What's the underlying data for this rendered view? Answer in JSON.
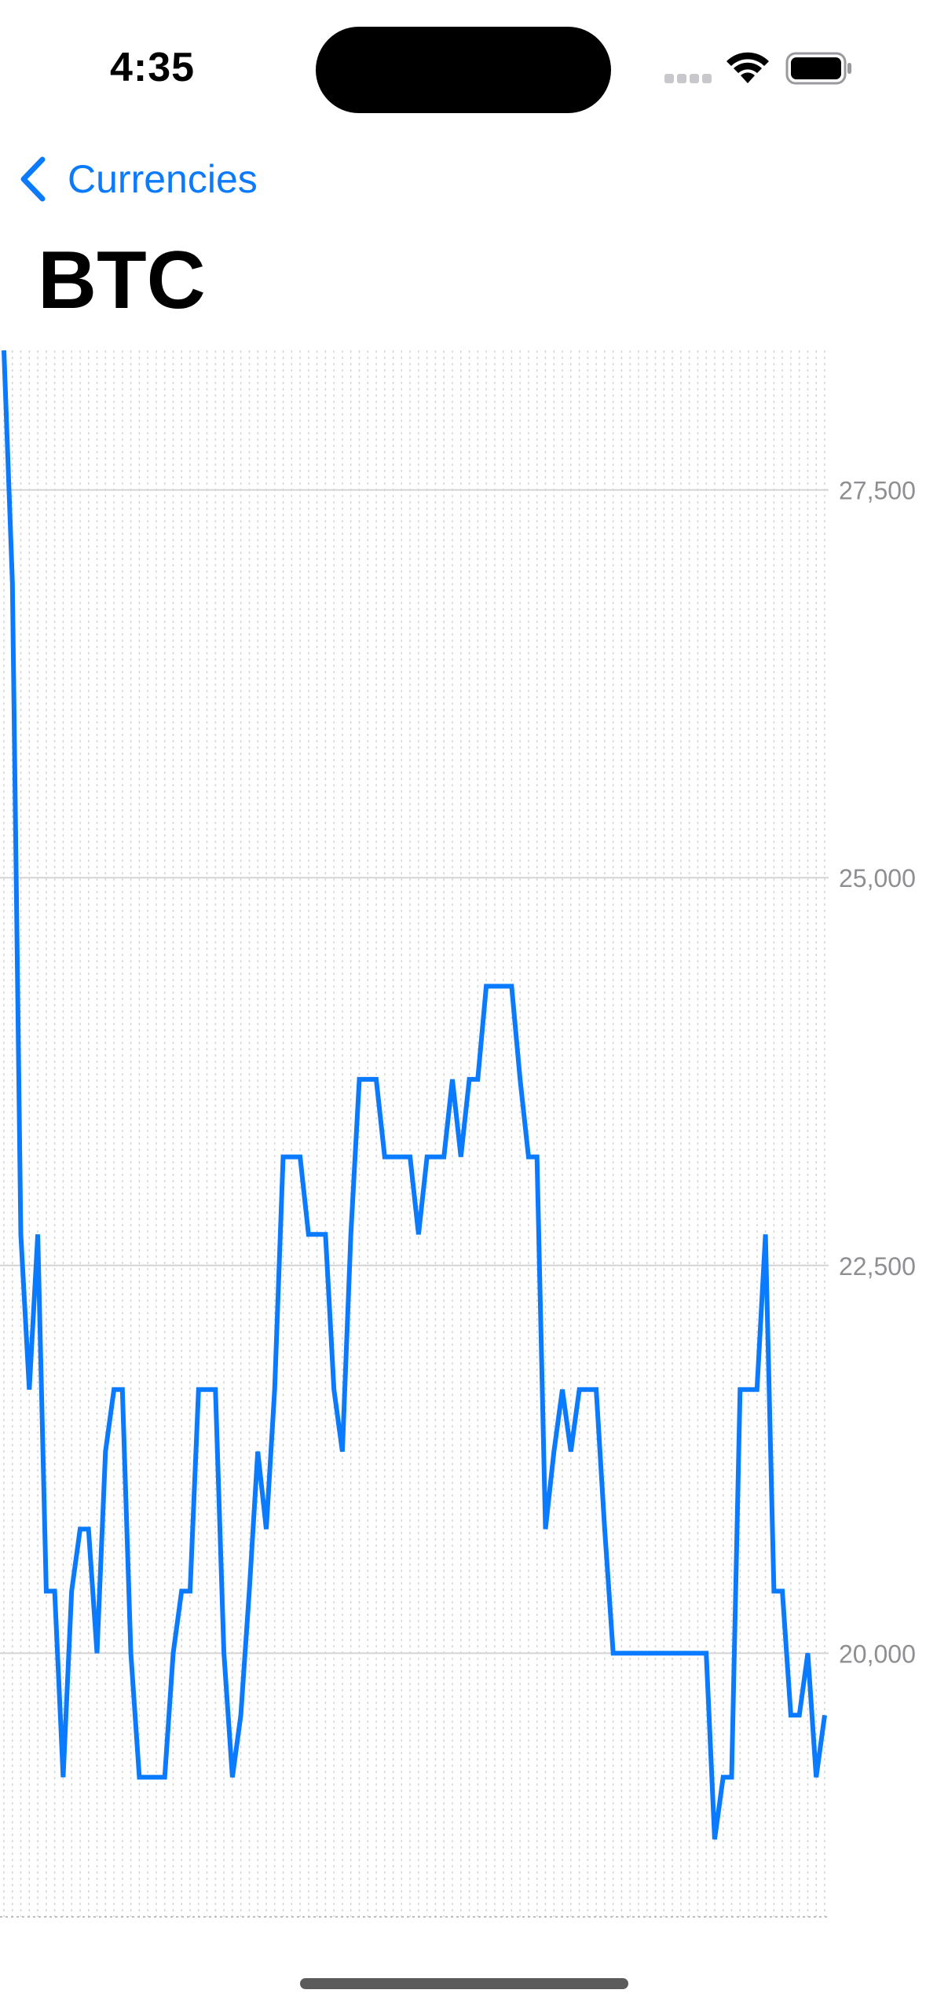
{
  "status_bar": {
    "time": "4:35"
  },
  "nav": {
    "back_label": "Currencies"
  },
  "page": {
    "title": "BTC"
  },
  "colors": {
    "accent": "#0a7aff",
    "line": "#0a7aff",
    "grid": "#d4d4d4",
    "axis_text": "#8e8e93"
  },
  "icons": [
    "chevron-left-icon",
    "signal-icon",
    "wifi-icon",
    "battery-icon"
  ],
  "chart_data": {
    "type": "line",
    "title": "",
    "xlabel": "",
    "ylabel": "",
    "grid": true,
    "y_axis_position": "right",
    "ylim": [
      18300,
      28400
    ],
    "y_ticks": [
      20000,
      22500,
      25000,
      27500
    ],
    "y_tick_labels": [
      "20,000",
      "22,500",
      "25,000",
      "27,500"
    ],
    "series": [
      {
        "values": [
          28400,
          26900,
          22700,
          21700,
          22700,
          20400,
          20400,
          19200,
          20400,
          20800,
          20800,
          20000,
          21300,
          21700,
          21700,
          20000,
          19200,
          19200,
          19200,
          19200,
          20000,
          20400,
          20400,
          21700,
          21700,
          21700,
          20000,
          19200,
          19600,
          20400,
          21300,
          20800,
          21700,
          23200,
          23200,
          23200,
          22700,
          22700,
          22700,
          21700,
          21300,
          22700,
          23700,
          23700,
          23700,
          23200,
          23200,
          23200,
          23200,
          22700,
          23200,
          23200,
          23200,
          23700,
          23200,
          23700,
          23700,
          24300,
          24300,
          24300,
          24300,
          23700,
          23200,
          23200,
          20800,
          21300,
          21700,
          21300,
          21700,
          21700,
          21700,
          20800,
          20000,
          20000,
          20000,
          20000,
          20000,
          20000,
          20000,
          20000,
          20000,
          20000,
          20000,
          20000,
          18800,
          19200,
          19200,
          21700,
          21700,
          21700,
          22700,
          20400,
          20400,
          19600,
          19600,
          20000,
          19200,
          19600
        ]
      }
    ]
  }
}
